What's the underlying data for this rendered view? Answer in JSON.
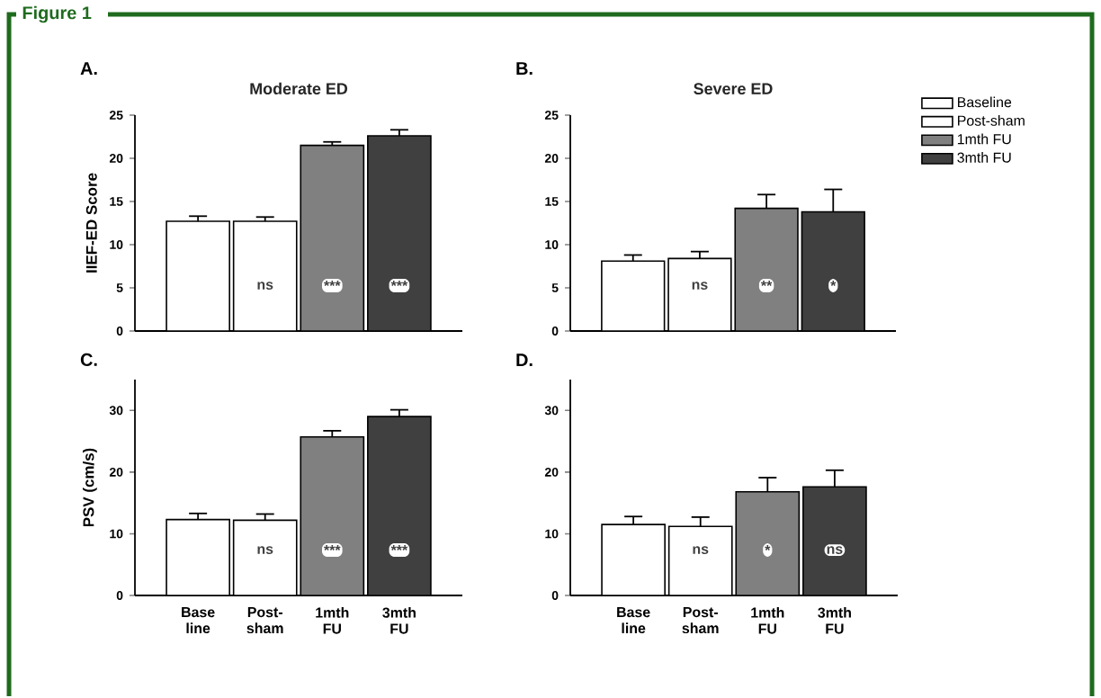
{
  "chart_data": [
    {
      "type": "bar",
      "title": "Moderate ED",
      "ylabel": "IIEF-ED Score",
      "categories": [
        null,
        null,
        null,
        null
      ],
      "ylim": [
        0,
        25
      ],
      "yticks": [
        0,
        5,
        10,
        15,
        20,
        25
      ],
      "tick_labels": "y",
      "series": [
        {
          "color": "#ffffff",
          "values": [
            12.7,
            null,
            null,
            null
          ],
          "errors": [
            0.6,
            null,
            null,
            null
          ]
        },
        {
          "color": "#ffffff",
          "values": [
            null,
            12.7,
            null,
            null
          ],
          "errors": [
            null,
            0.5,
            null,
            null
          ]
        },
        {
          "color": "#808080",
          "values": [
            null,
            null,
            21.5,
            null
          ],
          "errors": [
            null,
            null,
            0.4,
            null
          ]
        },
        {
          "color": "#404040",
          "values": [
            null,
            null,
            null,
            22.6
          ],
          "errors": [
            null,
            null,
            null,
            0.7
          ]
        }
      ],
      "annotations": [
        "A.",
        "Figure 1",
        "ns",
        "***",
        "***"
      ]
    },
    {
      "type": "bar",
      "title": "Severe ED",
      "categories": [
        null,
        null,
        null,
        null
      ],
      "ylim": [
        0,
        25
      ],
      "yticks": [
        0,
        5,
        10,
        15,
        20,
        25
      ],
      "tick_labels": "y",
      "legend": "right",
      "series": [
        {
          "name": "Baseline",
          "color": "#ffffff",
          "values": [
            8.1,
            null,
            null,
            null
          ],
          "errors": [
            0.7,
            null,
            null,
            null
          ]
        },
        {
          "name": "Post-sham",
          "color": "#ffffff",
          "values": [
            null,
            8.4,
            null,
            null
          ],
          "errors": [
            null,
            0.8,
            null,
            null
          ]
        },
        {
          "name": "1mth FU",
          "color": "#808080",
          "values": [
            null,
            null,
            14.2,
            null
          ],
          "errors": [
            null,
            null,
            1.6,
            null
          ]
        },
        {
          "name": "3mth FU",
          "color": "#404040",
          "values": [
            null,
            null,
            null,
            13.8
          ],
          "errors": [
            null,
            null,
            null,
            2.6
          ]
        }
      ],
      "annotations": [
        "B.",
        "ns",
        "**",
        "*"
      ]
    },
    {
      "type": "bar",
      "ylabel": "PSV (cm/s)",
      "categories": [
        "Base line",
        "Post-sham",
        "1mth FU",
        "3mth FU"
      ],
      "ylim": [
        0,
        35
      ],
      "yticks": [
        0,
        10,
        20,
        30
      ],
      "series": [
        {
          "color": "#ffffff",
          "values": [
            12.3,
            null,
            null,
            null
          ],
          "errors": [
            1.0,
            null,
            null,
            null
          ]
        },
        {
          "color": "#ffffff",
          "values": [
            null,
            12.2,
            null,
            null
          ],
          "errors": [
            null,
            1.0,
            null,
            null
          ]
        },
        {
          "color": "#808080",
          "values": [
            null,
            null,
            25.7,
            null
          ],
          "errors": [
            null,
            null,
            1.0,
            null
          ]
        },
        {
          "color": "#404040",
          "values": [
            null,
            null,
            null,
            29.0
          ],
          "errors": [
            null,
            null,
            null,
            1.1
          ]
        }
      ],
      "annotations": [
        "C.",
        "ns",
        "***",
        "***"
      ]
    },
    {
      "type": "bar",
      "categories": [
        "Base line",
        "Post-sham",
        "1mth FU",
        "3mth FU"
      ],
      "ylim": [
        0,
        35
      ],
      "yticks": [
        0,
        10,
        20,
        30
      ],
      "series": [
        {
          "color": "#ffffff",
          "values": [
            11.5,
            null,
            null,
            null
          ],
          "errors": [
            1.3,
            null,
            null,
            null
          ]
        },
        {
          "color": "#ffffff",
          "values": [
            null,
            11.2,
            null,
            null
          ],
          "errors": [
            null,
            1.5,
            null,
            null
          ]
        },
        {
          "color": "#808080",
          "values": [
            null,
            null,
            16.8,
            null
          ],
          "errors": [
            null,
            null,
            2.3,
            null
          ]
        },
        {
          "color": "#404040",
          "values": [
            null,
            null,
            null,
            17.6
          ],
          "errors": [
            null,
            null,
            null,
            2.7
          ]
        }
      ],
      "annotations": [
        "D.",
        "ns",
        "*",
        "ns"
      ]
    }
  ]
}
